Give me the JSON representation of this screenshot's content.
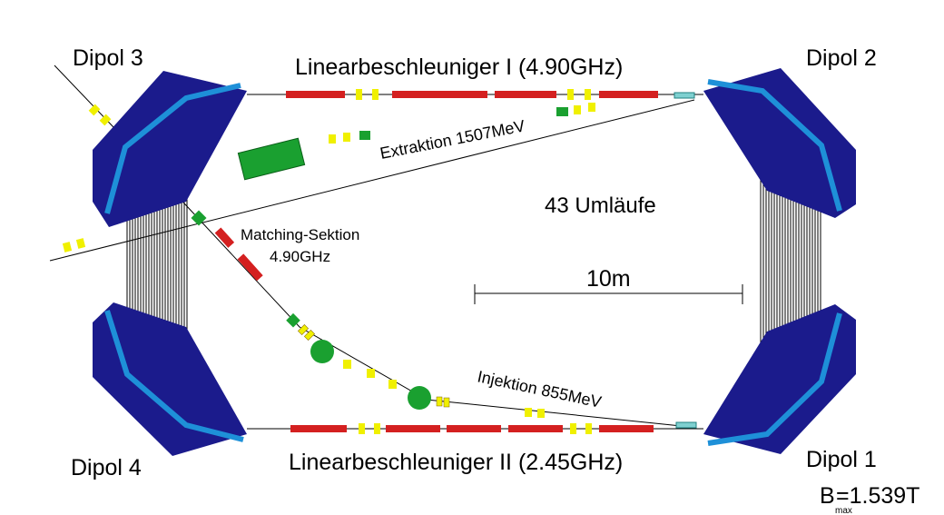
{
  "labels": {
    "dipol1": "Dipol 1",
    "dipol2": "Dipol 2",
    "dipol3": "Dipol 3",
    "dipol4": "Dipol 4",
    "linac1": "Linearbeschleuniger I (4.90GHz)",
    "linac2": "Linearbeschleuniger II (2.45GHz)",
    "extraction": "Extraktion 1507MeV",
    "injection": "Injektion 855MeV",
    "matching_line1": "Matching-Sektion",
    "matching_line2": "4.90GHz",
    "revolutions": "43 Umläufe",
    "scale": "10m",
    "bfield_main": "B",
    "bfield_sub": "max",
    "bfield_value": "=1.539T"
  },
  "colors": {
    "dipole_fill": "#1b1b8c",
    "dipole_stripe": "#1e90d8",
    "accelerator": "#d42020",
    "quadrupole": "#f0f000",
    "steerer": "#1aa030",
    "beamline": "#000000"
  },
  "icons": [
    "dipole-magnet-icon",
    "quadrupole-icon",
    "cavity-icon",
    "steerer-icon"
  ]
}
